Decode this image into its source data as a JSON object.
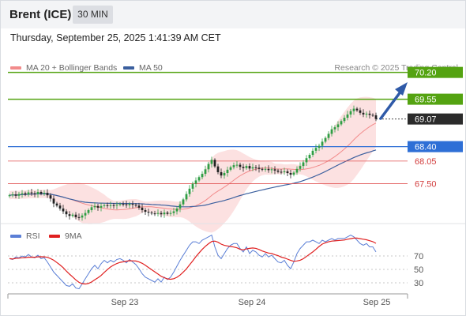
{
  "header": {
    "instrument": "Brent (ICE)",
    "timeframe": "30 MIN"
  },
  "date_text": "Thursday, September 25, 2025 1:41:39 AM CET",
  "credit": "Research © 2025 Trading Central",
  "colors": {
    "up": "#2f9e44",
    "down": "#222222",
    "bollinger": "#f28b8b",
    "ma50": "#3b5f9e",
    "resistance": "#54a311",
    "pivot": "#2e6fd6",
    "support": "#e05252",
    "last": "#2b2b2b",
    "arrow": "#2f5aa8",
    "rsi": "#5b7fd6",
    "rsi_ma": "#e02020"
  },
  "legend": {
    "ma20": "MA 20 + Bollinger Bands",
    "ma50": "MA 50",
    "rsi": "RSI",
    "rsi_ma": "9MA"
  },
  "levels": {
    "r2": "70.20",
    "r1": "69.55",
    "last": "69.07",
    "pivot": "68.40",
    "s1": "68.05",
    "s2": "67.50"
  },
  "rsi_ticks": [
    "70",
    "50",
    "30"
  ],
  "x_labels": [
    "Sep 23",
    "Sep 24",
    "Sep 25"
  ],
  "chart_data": {
    "type": "candlestick",
    "price_scale": {
      "min": 66.4,
      "max": 70.5
    },
    "rsi_scale": {
      "min": 10,
      "max": 90
    },
    "closes": [
      67.22,
      67.24,
      67.21,
      67.25,
      67.27,
      67.24,
      67.29,
      67.27,
      67.25,
      67.3,
      67.26,
      67.28,
      67.22,
      67.14,
      67.02,
      66.97,
      66.9,
      66.83,
      66.76,
      66.72,
      66.75,
      66.69,
      66.68,
      66.73,
      66.79,
      66.86,
      66.93,
      66.96,
      66.92,
      66.96,
      66.98,
      66.96,
      66.98,
      66.97,
      66.99,
      67.01,
      67.0,
      66.98,
      67.01,
      66.99,
      66.97,
      66.92,
      66.86,
      66.82,
      66.8,
      66.78,
      66.77,
      66.79,
      66.76,
      66.8,
      66.77,
      66.79,
      66.83,
      66.9,
      67.0,
      67.12,
      67.25,
      67.38,
      67.5,
      67.58,
      67.66,
      67.74,
      67.85,
      67.98,
      68.08,
      67.92,
      67.78,
      67.7,
      67.76,
      67.84,
      67.9,
      67.95,
      67.96,
      67.91,
      67.88,
      67.93,
      67.87,
      67.9,
      67.89,
      67.86,
      67.84,
      67.86,
      67.83,
      67.85,
      67.82,
      67.79,
      67.78,
      67.8,
      67.76,
      67.72,
      67.77,
      67.86,
      67.93,
      68.02,
      68.12,
      68.2,
      68.3,
      68.37,
      68.42,
      68.52,
      68.61,
      68.71,
      68.82,
      68.87,
      68.94,
      69.02,
      69.1,
      69.18,
      69.26,
      69.32,
      69.28,
      69.22,
      69.18,
      69.2,
      69.17,
      69.16,
      69.07
    ],
    "rsi": [
      52,
      51,
      54,
      53,
      55,
      54,
      57,
      54,
      53,
      56,
      52,
      53,
      48,
      42,
      36,
      32,
      28,
      24,
      20,
      19,
      22,
      17,
      16,
      22,
      28,
      34,
      40,
      44,
      40,
      46,
      50,
      47,
      50,
      48,
      51,
      52,
      50,
      47,
      51,
      48,
      45,
      40,
      34,
      30,
      28,
      26,
      24,
      28,
      24,
      30,
      27,
      30,
      36,
      43,
      50,
      56,
      62,
      68,
      72,
      72,
      70,
      74,
      76,
      78,
      80,
      66,
      56,
      52,
      58,
      64,
      68,
      70,
      70,
      64,
      60,
      66,
      58,
      62,
      60,
      56,
      54,
      58,
      54,
      56,
      52,
      48,
      47,
      50,
      44,
      40,
      48,
      58,
      64,
      68,
      72,
      72,
      74,
      72,
      70,
      74,
      72,
      74,
      76,
      74,
      76,
      76,
      76,
      78,
      80,
      78,
      74,
      70,
      68,
      70,
      66,
      66,
      60
    ]
  }
}
